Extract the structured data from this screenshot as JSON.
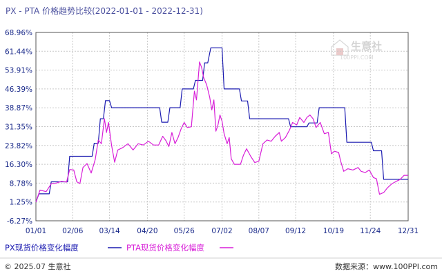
{
  "title": "PX - PTA 价格趋势比较(2022-01-01 - 2022-12-31)",
  "watermark": {
    "text": "生意社",
    "sub": "100PPI.COM"
  },
  "footer": {
    "left": "© 2025.07 生意社",
    "right": "数据来源：www.100PPI.com"
  },
  "colors": {
    "px": "#1a1ab0",
    "pta": "#d81fd8",
    "grid": "#c8c8c8",
    "axis": "#555555",
    "text": "#1a2a8a"
  },
  "chart_data": {
    "type": "line",
    "title": "PX - PTA 价格趋势比较(2022-01-01 - 2022-12-31)",
    "ylabel_unit": "%",
    "yticks": [
      "68.96%",
      "61.44%",
      "53.91%",
      "46.39%",
      "38.87%",
      "31.35%",
      "23.82%",
      "16.30%",
      "8.78%",
      "1.25%",
      "-6.27%"
    ],
    "ylim": [
      -6.27,
      68.96
    ],
    "xlim": [
      0,
      364
    ],
    "xticks": [
      {
        "label": "01/01",
        "day": 0
      },
      {
        "label": "02/06",
        "day": 36
      },
      {
        "label": "03/14",
        "day": 72
      },
      {
        "label": "04/20",
        "day": 109
      },
      {
        "label": "05/26",
        "day": 145
      },
      {
        "label": "07/02",
        "day": 182
      },
      {
        "label": "08/07",
        "day": 218
      },
      {
        "label": "09/12",
        "day": 254
      },
      {
        "label": "10/19",
        "day": 291
      },
      {
        "label": "11/24",
        "day": 327
      },
      {
        "label": "12/31",
        "day": 364
      }
    ],
    "grid": true,
    "legend": "bottom-left",
    "series": [
      {
        "name": "PX现货价格变化幅度",
        "color": "#1a1ab0",
        "step": true,
        "points": [
          [
            0,
            1.2
          ],
          [
            3,
            4.5
          ],
          [
            13,
            4.5
          ],
          [
            15,
            9.3
          ],
          [
            31,
            9.3
          ],
          [
            33,
            19.5
          ],
          [
            55,
            19.5
          ],
          [
            57,
            24.7
          ],
          [
            61,
            24.7
          ],
          [
            63,
            34.5
          ],
          [
            66,
            34.5
          ],
          [
            68,
            41.7
          ],
          [
            72,
            41.7
          ],
          [
            74,
            38.9
          ],
          [
            121,
            38.9
          ],
          [
            123,
            33.1
          ],
          [
            129,
            33.1
          ],
          [
            131,
            38.9
          ],
          [
            141,
            38.9
          ],
          [
            143,
            46.4
          ],
          [
            154,
            46.4
          ],
          [
            156,
            49.8
          ],
          [
            163,
            49.8
          ],
          [
            165,
            56.8
          ],
          [
            168,
            56.8
          ],
          [
            171,
            62.8
          ],
          [
            182,
            62.8
          ],
          [
            184,
            46.4
          ],
          [
            199,
            46.4
          ],
          [
            201,
            41.6
          ],
          [
            207,
            41.6
          ],
          [
            209,
            34.5
          ],
          [
            247,
            34.5
          ],
          [
            249,
            31.3
          ],
          [
            265,
            31.3
          ],
          [
            267,
            32.8
          ],
          [
            275,
            32.8
          ],
          [
            277,
            38.9
          ],
          [
            302,
            38.9
          ],
          [
            304,
            25.1
          ],
          [
            328,
            25.1
          ],
          [
            330,
            21.7
          ],
          [
            338,
            21.7
          ],
          [
            340,
            10.3
          ],
          [
            364,
            10.3
          ]
        ]
      },
      {
        "name": "PTA现货价格变化幅度",
        "color": "#d81fd8",
        "step": false,
        "points": [
          [
            0,
            1.2
          ],
          [
            4,
            6.0
          ],
          [
            10,
            5.4
          ],
          [
            15,
            8.5
          ],
          [
            20,
            8.8
          ],
          [
            25,
            9.5
          ],
          [
            30,
            9.2
          ],
          [
            33,
            14.2
          ],
          [
            37,
            14.0
          ],
          [
            40,
            9.3
          ],
          [
            43,
            8.6
          ],
          [
            46,
            15.0
          ],
          [
            50,
            16.6
          ],
          [
            54,
            12.8
          ],
          [
            58,
            18.2
          ],
          [
            61,
            26.0
          ],
          [
            64,
            24.5
          ],
          [
            67,
            34.5
          ],
          [
            69,
            29.0
          ],
          [
            71,
            33.0
          ],
          [
            74,
            23.8
          ],
          [
            77,
            17.1
          ],
          [
            80,
            22.0
          ],
          [
            85,
            23.0
          ],
          [
            90,
            24.5
          ],
          [
            95,
            22.0
          ],
          [
            100,
            24.5
          ],
          [
            105,
            24.0
          ],
          [
            110,
            25.5
          ],
          [
            115,
            24.0
          ],
          [
            120,
            24.0
          ],
          [
            124,
            27.5
          ],
          [
            127,
            25.8
          ],
          [
            130,
            23.4
          ],
          [
            133,
            29.0
          ],
          [
            136,
            24.5
          ],
          [
            139,
            27.0
          ],
          [
            142,
            30.5
          ],
          [
            145,
            33.0
          ],
          [
            148,
            31.0
          ],
          [
            152,
            31.3
          ],
          [
            155,
            45.5
          ],
          [
            157,
            42.0
          ],
          [
            160,
            57.2
          ],
          [
            162,
            55.0
          ],
          [
            164,
            51.0
          ],
          [
            167,
            48.0
          ],
          [
            170,
            43.0
          ],
          [
            172,
            38.0
          ],
          [
            174,
            42.0
          ],
          [
            176,
            29.5
          ],
          [
            178,
            32.0
          ],
          [
            180,
            36.0
          ],
          [
            182,
            33.5
          ],
          [
            184,
            28.5
          ],
          [
            187,
            24.5
          ],
          [
            189,
            27.0
          ],
          [
            191,
            18.5
          ],
          [
            194,
            16.3
          ],
          [
            200,
            16.3
          ],
          [
            203,
            20.0
          ],
          [
            206,
            22.5
          ],
          [
            210,
            19.5
          ],
          [
            214,
            17.0
          ],
          [
            218,
            17.5
          ],
          [
            222,
            24.5
          ],
          [
            226,
            26.0
          ],
          [
            230,
            25.5
          ],
          [
            234,
            27.5
          ],
          [
            238,
            29.0
          ],
          [
            240,
            25.5
          ],
          [
            244,
            27.0
          ],
          [
            248,
            30.0
          ],
          [
            251,
            33.0
          ],
          [
            255,
            32.0
          ],
          [
            258,
            35.0
          ],
          [
            262,
            33.0
          ],
          [
            265,
            35.0
          ],
          [
            268,
            36.0
          ],
          [
            271,
            34.5
          ],
          [
            274,
            31.0
          ],
          [
            278,
            33.0
          ],
          [
            282,
            28.5
          ],
          [
            286,
            29.0
          ],
          [
            289,
            20.5
          ],
          [
            292,
            21.5
          ],
          [
            296,
            21.0
          ],
          [
            298,
            17.5
          ],
          [
            301,
            13.5
          ],
          [
            305,
            14.5
          ],
          [
            310,
            14.0
          ],
          [
            315,
            15.0
          ],
          [
            318,
            13.5
          ],
          [
            322,
            13.0
          ],
          [
            326,
            14.0
          ],
          [
            330,
            11.0
          ],
          [
            333,
            10.5
          ],
          [
            336,
            4.3
          ],
          [
            340,
            5.0
          ],
          [
            344,
            7.0
          ],
          [
            348,
            8.5
          ],
          [
            352,
            9.4
          ],
          [
            356,
            10.2
          ],
          [
            360,
            11.9
          ],
          [
            364,
            11.9
          ]
        ]
      }
    ]
  }
}
